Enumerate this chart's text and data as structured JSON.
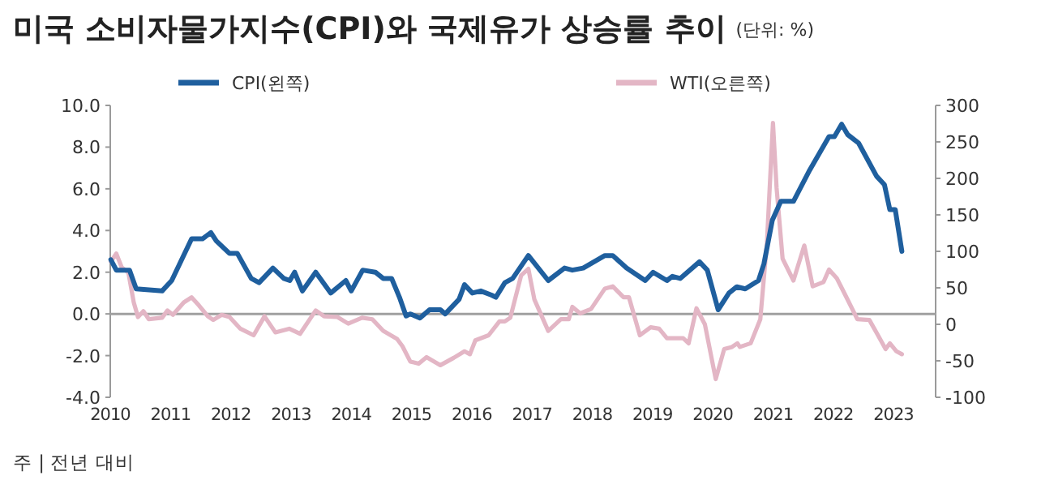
{
  "chart_data": {
    "type": "line",
    "title": "미국 소비자물가지수(CPI)와 국제유가 상승률 추이",
    "subtitle": "(단위: %)",
    "annotations": [
      "주 | 전년 대비"
    ],
    "legend": "top",
    "grid": false,
    "marker": "none",
    "line_style": "solid",
    "xlim": [
      2010,
      2023.7
    ],
    "xticks": [
      2010,
      2011,
      2012,
      2013,
      2014,
      2015,
      2016,
      2017,
      2018,
      2019,
      2020,
      2021,
      2022,
      2023
    ],
    "ylim": [
      -4,
      10
    ],
    "yticks": [
      {
        "value": -4,
        "label": "-4.0"
      },
      {
        "value": -2,
        "label": "-2.0"
      },
      {
        "value": 0,
        "label": "0.0"
      },
      {
        "value": 2,
        "label": "2.0"
      },
      {
        "value": 4,
        "label": "4.0"
      },
      {
        "value": 6,
        "label": "6.0"
      },
      {
        "value": 8,
        "label": "8.0"
      },
      {
        "value": 10,
        "label": "10.0"
      }
    ],
    "y2lim": [
      -100,
      300
    ],
    "y2ticks": [
      -100,
      -50,
      0,
      50,
      100,
      150,
      200,
      250,
      300
    ],
    "ref_lines": [
      {
        "axis": "y",
        "value": 0,
        "color": "#a0a0a0"
      }
    ],
    "series": [
      {
        "name": "CPI(왼쪽)",
        "color": "#1f5f9e",
        "x": [
          2010.01,
          2010.1,
          2010.32,
          2010.43,
          2010.86,
          2011.02,
          2011.35,
          2011.53,
          2011.67,
          2011.76,
          2011.98,
          2012.11,
          2012.34,
          2012.47,
          2012.7,
          2012.88,
          2012.98,
          2013.06,
          2013.19,
          2013.41,
          2013.66,
          2013.91,
          2014.0,
          2014.19,
          2014.4,
          2014.53,
          2014.67,
          2014.8,
          2014.91,
          2014.98,
          2015.14,
          2015.3,
          2015.48,
          2015.56,
          2015.79,
          2015.88,
          2016.01,
          2016.15,
          2016.33,
          2016.4,
          2016.55,
          2016.68,
          2016.94,
          2017.27,
          2017.54,
          2017.67,
          2017.85,
          2018.21,
          2018.34,
          2018.57,
          2018.88,
          2019.01,
          2019.24,
          2019.33,
          2019.46,
          2019.78,
          2019.91,
          2020.09,
          2020.27,
          2020.4,
          2020.54,
          2020.76,
          2020.85,
          2020.99,
          2021.13,
          2021.34,
          2021.61,
          2021.93,
          2022.02,
          2022.14,
          2022.24,
          2022.42,
          2022.72,
          2022.85,
          2022.94,
          2023.03,
          2023.14
        ],
        "values": [
          2.6,
          2.1,
          2.1,
          1.2,
          1.1,
          1.6,
          3.6,
          3.6,
          3.9,
          3.5,
          2.9,
          2.9,
          1.7,
          1.5,
          2.2,
          1.7,
          1.6,
          2.0,
          1.1,
          2.0,
          1.0,
          1.6,
          1.1,
          2.1,
          2.0,
          1.7,
          1.7,
          0.8,
          -0.1,
          0.0,
          -0.2,
          0.2,
          0.2,
          0.0,
          0.7,
          1.4,
          1.0,
          1.1,
          0.9,
          0.8,
          1.5,
          1.7,
          2.8,
          1.6,
          2.2,
          2.1,
          2.2,
          2.8,
          2.8,
          2.2,
          1.6,
          2.0,
          1.6,
          1.8,
          1.7,
          2.5,
          2.1,
          0.2,
          1.0,
          1.3,
          1.2,
          1.6,
          2.4,
          4.5,
          5.4,
          5.4,
          6.9,
          8.5,
          8.5,
          9.1,
          8.6,
          8.2,
          6.6,
          6.2,
          5.0,
          5.0,
          3.0
        ]
      },
      {
        "name": "WTI(오른쪽)",
        "color": "#e3b6c5",
        "axis": "y2",
        "x": [
          2010.01,
          2010.1,
          2010.19,
          2010.3,
          2010.39,
          2010.46,
          2010.55,
          2010.64,
          2010.86,
          2010.95,
          2011.04,
          2011.22,
          2011.35,
          2011.47,
          2011.62,
          2011.71,
          2011.85,
          2011.98,
          2012.16,
          2012.38,
          2012.56,
          2012.74,
          2012.97,
          2013.15,
          2013.41,
          2013.55,
          2013.77,
          2013.95,
          2014.18,
          2014.35,
          2014.53,
          2014.76,
          2014.85,
          2014.98,
          2015.12,
          2015.25,
          2015.48,
          2015.7,
          2015.88,
          2015.97,
          2016.06,
          2016.28,
          2016.46,
          2016.55,
          2016.64,
          2016.82,
          2016.94,
          2017.04,
          2017.27,
          2017.48,
          2017.61,
          2017.67,
          2017.8,
          2017.98,
          2018.21,
          2018.34,
          2018.52,
          2018.61,
          2018.79,
          2018.97,
          2019.11,
          2019.24,
          2019.51,
          2019.6,
          2019.73,
          2019.87,
          2020.05,
          2020.19,
          2020.32,
          2020.41,
          2020.45,
          2020.63,
          2020.79,
          2020.9,
          2021.0,
          2021.06,
          2021.16,
          2021.34,
          2021.52,
          2021.66,
          2021.84,
          2021.93,
          2022.06,
          2022.22,
          2022.4,
          2022.6,
          2022.73,
          2022.87,
          2022.94,
          2023.05,
          2023.14
        ],
        "values": [
          86,
          97,
          78,
          71,
          30,
          10,
          18,
          7,
          9,
          19,
          13,
          30,
          37,
          26,
          11,
          6,
          13,
          10,
          -6,
          -15,
          11,
          -11,
          -6,
          -13,
          19,
          11,
          10,
          1,
          9,
          7,
          -9,
          -20,
          -30,
          -51,
          -54,
          -45,
          -56,
          -46,
          -37,
          -41,
          -22,
          -15,
          4,
          4,
          9,
          67,
          76,
          34,
          -9,
          7,
          7,
          24,
          15,
          21,
          49,
          52,
          37,
          37,
          -15,
          -4,
          -6,
          -19,
          -19,
          -26,
          22,
          0,
          -75,
          -34,
          -31,
          -26,
          -31,
          -26,
          7,
          112,
          276,
          187,
          90,
          60,
          108,
          52,
          58,
          75,
          63,
          37,
          7,
          6,
          -13,
          -34,
          -26,
          -37,
          -41
        ]
      }
    ]
  }
}
